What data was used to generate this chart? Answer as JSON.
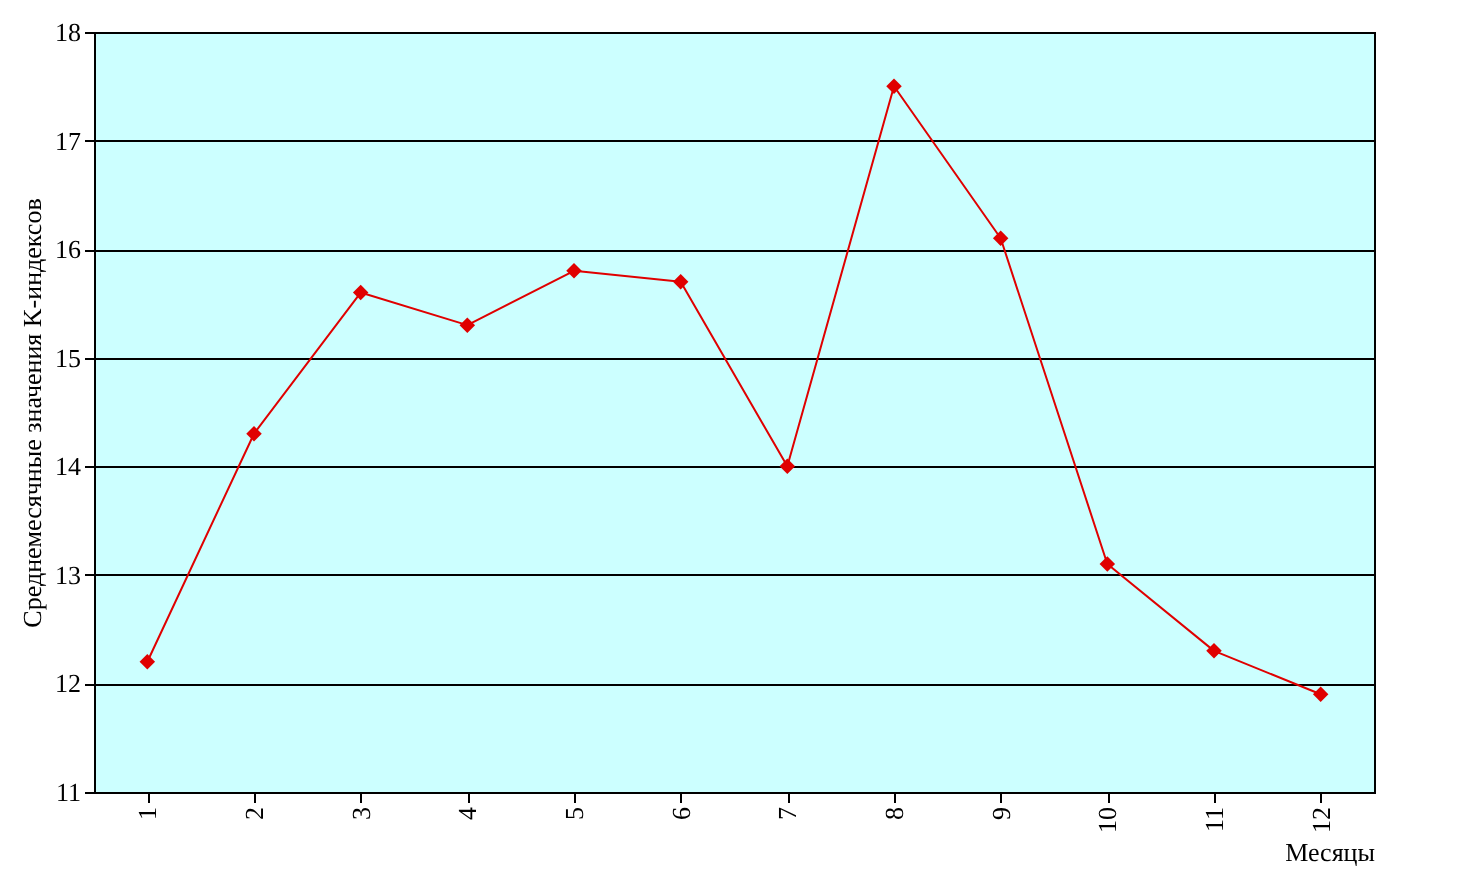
{
  "chart_data": {
    "type": "line",
    "xlabel": "Месяцы",
    "ylabel": "Среднемесячные значения K-индексов",
    "categories": [
      "1",
      "2",
      "3",
      "4",
      "5",
      "6",
      "7",
      "8",
      "9",
      "10",
      "11",
      "12"
    ],
    "series": [
      {
        "color": "#e00000",
        "values": [
          12.2,
          14.3,
          15.6,
          15.3,
          15.8,
          15.7,
          14.0,
          17.5,
          16.1,
          13.1,
          12.3,
          11.9
        ]
      }
    ],
    "ylim": [
      11,
      18
    ],
    "yticks": [
      11,
      12,
      13,
      14,
      15,
      16,
      17,
      18
    ],
    "grid": "y",
    "marker": "diamond",
    "line_style": "solid"
  }
}
